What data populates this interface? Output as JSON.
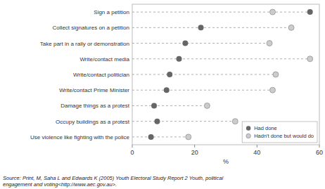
{
  "chart_data": {
    "type": "dot",
    "orientation": "horizontal",
    "categories": [
      "Sign a petition",
      "Collect signatures on a petition",
      "Take part in a rally or demonstration",
      "Write/contact media",
      "Write/contact politician",
      "Write/contact Prime Minister",
      "Damage things as a protest",
      "Occupy buildings as a protest",
      "Use violence like fighting with the police"
    ],
    "series": [
      {
        "name": "Had done",
        "color": "#666666",
        "values": [
          57,
          22,
          17,
          15,
          12,
          11,
          7,
          8,
          6
        ]
      },
      {
        "name": "Hadn't done but would do",
        "color": "#cccccc",
        "values": [
          45,
          51,
          44,
          57,
          46,
          45,
          24,
          33,
          18
        ]
      }
    ],
    "xlabel": "%",
    "xlim": [
      0,
      60
    ],
    "xticks": [
      0,
      20,
      40,
      60
    ],
    "grid": false,
    "legend": "lower right",
    "annotations": [
      "Source: Print, M, Saha L and Edwards K (2005) Youth Electoral Study Report 2 Youth, political\nengagement and voting<http://www.aec.gov.au>."
    ]
  }
}
